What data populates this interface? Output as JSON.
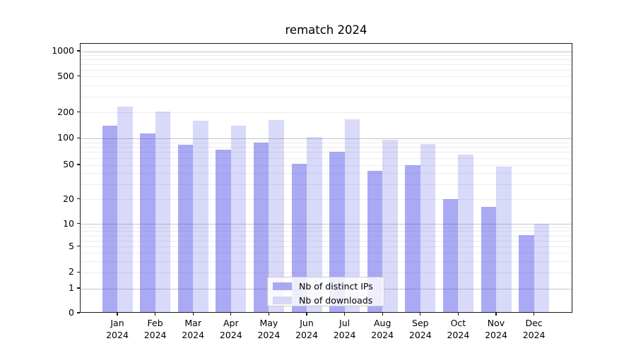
{
  "chart_data": {
    "type": "bar",
    "title": "rematch 2024",
    "categories": [
      "Jan 2024",
      "Feb 2024",
      "Mar 2024",
      "Apr 2024",
      "May 2024",
      "Jun 2024",
      "Jul 2024",
      "Aug 2024",
      "Sep 2024",
      "Oct 2024",
      "Nov 2024",
      "Dec 2024"
    ],
    "series": [
      {
        "name": "Nb of distinct IPs",
        "values": [
          140,
          112,
          84,
          74,
          88,
          51,
          70,
          42,
          49,
          20,
          16,
          7
        ],
        "legend_color": "#a8a8f0",
        "fill": "rgba(75,75,232,0.48)"
      },
      {
        "name": "Nb of downloads",
        "values": [
          230,
          204,
          160,
          139,
          162,
          103,
          166,
          95,
          85,
          65,
          47,
          10
        ],
        "legend_color": "#d6d6f6",
        "fill": "rgba(75,75,232,0.21)"
      }
    ],
    "xlabel": "",
    "ylabel": "",
    "yscale": "symlog",
    "yticks": [
      0,
      1,
      2,
      5,
      10,
      20,
      50,
      100,
      200,
      500,
      1000
    ],
    "ylim": [
      0,
      1200
    ],
    "grid": true,
    "legend_position": "lower center"
  },
  "colors": {
    "grid_major": "#c6c6c6",
    "grid_minor": "#ececec",
    "spine": "#1a1a1a",
    "background": "#ffffff"
  }
}
